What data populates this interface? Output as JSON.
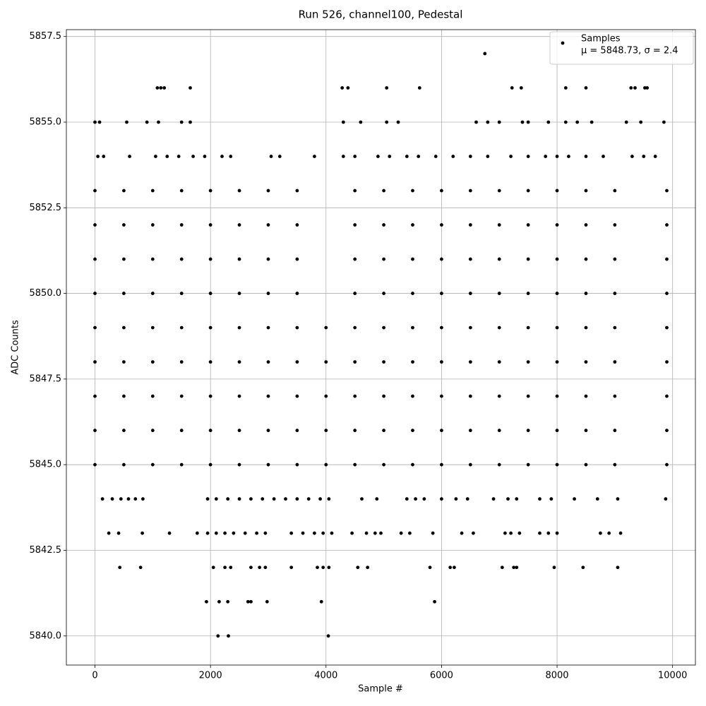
{
  "chart_data": {
    "type": "scatter",
    "title": "Run 526, channel100, Pedestal",
    "x_label": "Sample #",
    "y_label": "ADC Counts",
    "annotation": "μ = 5848.73, σ = 2.4",
    "legend": "upper right",
    "grid": true,
    "xlim": [
      -495,
      10395
    ],
    "ylim": [
      5839.15,
      5857.7
    ],
    "xticks": [
      0,
      2000,
      4000,
      6000,
      8000,
      10000
    ],
    "yticks": [
      {
        "value": 5840,
        "label": "5840.0"
      },
      {
        "value": 5842.5,
        "label": "5842.5"
      },
      {
        "value": 5845,
        "label": "5845.0"
      },
      {
        "value": 5847.5,
        "label": "5847.5"
      },
      {
        "value": 5850,
        "label": "5850.0"
      },
      {
        "value": 5852.5,
        "label": "5852.5"
      },
      {
        "value": 5855,
        "label": "5855.0"
      },
      {
        "value": 5857.5,
        "label": "5857.5"
      }
    ],
    "x": [
      0,
      500,
      1000,
      1500,
      2000,
      2500,
      3000,
      3500,
      4000,
      4500,
      5000,
      5500,
      6000,
      6500,
      7000,
      7500,
      8000,
      8500,
      9000,
      9900,
      0,
      500,
      1000,
      1500,
      2000,
      2500,
      3000,
      3500,
      4000,
      4500,
      5000,
      5500,
      6000,
      6500,
      7000,
      7500,
      8000,
      8500,
      9000,
      9900,
      0,
      500,
      1000,
      1500,
      2000,
      2500,
      3000,
      3500,
      4000,
      4500,
      5000,
      5500,
      6000,
      6500,
      7000,
      7500,
      8000,
      8500,
      9000,
      9900,
      0,
      500,
      1000,
      1500,
      2000,
      2500,
      3000,
      3500,
      4000,
      4500,
      5000,
      5500,
      6000,
      6500,
      7000,
      7500,
      8000,
      8500,
      9000,
      9900,
      0,
      500,
      1000,
      1500,
      2000,
      2500,
      3000,
      3500,
      4000,
      4500,
      5000,
      5500,
      6000,
      6500,
      7000,
      7500,
      8000,
      8500,
      9000,
      9900,
      0,
      500,
      1000,
      1500,
      2000,
      2500,
      3000,
      3500,
      4500,
      5000,
      5500,
      6000,
      6500,
      7000,
      7500,
      8000,
      8500,
      9000,
      9900,
      0,
      500,
      1000,
      1500,
      2000,
      2500,
      3000,
      3500,
      4500,
      5000,
      5500,
      6000,
      6500,
      7000,
      7500,
      8000,
      8500,
      9000,
      9900,
      0,
      500,
      1000,
      1500,
      2000,
      2500,
      3000,
      3500,
      4500,
      5000,
      5500,
      6000,
      6500,
      7000,
      7500,
      8000,
      8500,
      9000,
      9900,
      0,
      500,
      1000,
      1500,
      2000,
      2500,
      3000,
      3500,
      4500,
      5000,
      5500,
      6000,
      6500,
      7000,
      7500,
      8000,
      8500,
      9000,
      9900,
      50,
      150,
      600,
      1050,
      1250,
      1450,
      1700,
      1900,
      2200,
      2350,
      3050,
      3200,
      3800,
      4300,
      4500,
      4900,
      5100,
      5400,
      5600,
      5900,
      6200,
      6500,
      6800,
      7200,
      7500,
      7800,
      8000,
      8200,
      8500,
      8800,
      9300,
      9500,
      9700,
      0,
      80,
      550,
      900,
      1100,
      1500,
      1650,
      4300,
      4600,
      5050,
      5250,
      6600,
      6800,
      7000,
      7400,
      7500,
      7850,
      8150,
      8350,
      8600,
      9200,
      9450,
      9850,
      1080,
      1140,
      1200,
      1650,
      4280,
      4380,
      5050,
      5620,
      7220,
      7380,
      8150,
      8500,
      9280,
      9350,
      9520,
      9560,
      6750,
      130,
      300,
      450,
      580,
      700,
      830,
      1950,
      2100,
      2300,
      2500,
      2700,
      2900,
      3100,
      3300,
      3500,
      3700,
      3900,
      4050,
      4620,
      4880,
      5400,
      5550,
      5700,
      6000,
      6250,
      6450,
      6900,
      7150,
      7300,
      7700,
      7900,
      8300,
      8700,
      9050,
      9880,
      240,
      410,
      820,
      1290,
      1770,
      1950,
      2100,
      2250,
      2400,
      2600,
      2800,
      2950,
      3400,
      3600,
      3800,
      3950,
      4100,
      4450,
      4700,
      4850,
      4950,
      5300,
      5450,
      5850,
      6350,
      6550,
      7100,
      7200,
      7350,
      7700,
      7850,
      8000,
      8750,
      8900,
      9100,
      430,
      790,
      2050,
      2250,
      2350,
      2700,
      2850,
      2950,
      3400,
      3850,
      3950,
      4050,
      4550,
      4720,
      5800,
      6150,
      6220,
      7050,
      7250,
      7300,
      7950,
      8450,
      9050,
      1930,
      2150,
      2300,
      2650,
      2700,
      2980,
      3920,
      5880,
      2130,
      2310,
      4040
    ],
    "series": [
      {
        "name": "Samples",
        "color": "#000000",
        "values": [
          5845,
          5845,
          5845,
          5845,
          5845,
          5845,
          5845,
          5845,
          5845,
          5845,
          5845,
          5845,
          5845,
          5845,
          5845,
          5845,
          5845,
          5845,
          5845,
          5845,
          5846,
          5846,
          5846,
          5846,
          5846,
          5846,
          5846,
          5846,
          5846,
          5846,
          5846,
          5846,
          5846,
          5846,
          5846,
          5846,
          5846,
          5846,
          5846,
          5846,
          5847,
          5847,
          5847,
          5847,
          5847,
          5847,
          5847,
          5847,
          5847,
          5847,
          5847,
          5847,
          5847,
          5847,
          5847,
          5847,
          5847,
          5847,
          5847,
          5847,
          5848,
          5848,
          5848,
          5848,
          5848,
          5848,
          5848,
          5848,
          5848,
          5848,
          5848,
          5848,
          5848,
          5848,
          5848,
          5848,
          5848,
          5848,
          5848,
          5848,
          5849,
          5849,
          5849,
          5849,
          5849,
          5849,
          5849,
          5849,
          5849,
          5849,
          5849,
          5849,
          5849,
          5849,
          5849,
          5849,
          5849,
          5849,
          5849,
          5849,
          5850,
          5850,
          5850,
          5850,
          5850,
          5850,
          5850,
          5850,
          5850,
          5850,
          5850,
          5850,
          5850,
          5850,
          5850,
          5850,
          5850,
          5850,
          5850,
          5851,
          5851,
          5851,
          5851,
          5851,
          5851,
          5851,
          5851,
          5851,
          5851,
          5851,
          5851,
          5851,
          5851,
          5851,
          5851,
          5851,
          5851,
          5851,
          5852,
          5852,
          5852,
          5852,
          5852,
          5852,
          5852,
          5852,
          5852,
          5852,
          5852,
          5852,
          5852,
          5852,
          5852,
          5852,
          5852,
          5852,
          5852,
          5853,
          5853,
          5853,
          5853,
          5853,
          5853,
          5853,
          5853,
          5853,
          5853,
          5853,
          5853,
          5853,
          5853,
          5853,
          5853,
          5853,
          5853,
          5853,
          5854,
          5854,
          5854,
          5854,
          5854,
          5854,
          5854,
          5854,
          5854,
          5854,
          5854,
          5854,
          5854,
          5854,
          5854,
          5854,
          5854,
          5854,
          5854,
          5854,
          5854,
          5854,
          5854,
          5854,
          5854,
          5854,
          5854,
          5854,
          5854,
          5854,
          5854,
          5854,
          5854,
          5855,
          5855,
          5855,
          5855,
          5855,
          5855,
          5855,
          5855,
          5855,
          5855,
          5855,
          5855,
          5855,
          5855,
          5855,
          5855,
          5855,
          5855,
          5855,
          5855,
          5855,
          5855,
          5855,
          5856,
          5856,
          5856,
          5856,
          5856,
          5856,
          5856,
          5856,
          5856,
          5856,
          5856,
          5856,
          5856,
          5856,
          5856,
          5856,
          5857,
          5844,
          5844,
          5844,
          5844,
          5844,
          5844,
          5844,
          5844,
          5844,
          5844,
          5844,
          5844,
          5844,
          5844,
          5844,
          5844,
          5844,
          5844,
          5844,
          5844,
          5844,
          5844,
          5844,
          5844,
          5844,
          5844,
          5844,
          5844,
          5844,
          5844,
          5844,
          5844,
          5844,
          5844,
          5844,
          5843,
          5843,
          5843,
          5843,
          5843,
          5843,
          5843,
          5843,
          5843,
          5843,
          5843,
          5843,
          5843,
          5843,
          5843,
          5843,
          5843,
          5843,
          5843,
          5843,
          5843,
          5843,
          5843,
          5843,
          5843,
          5843,
          5843,
          5843,
          5843,
          5843,
          5843,
          5843,
          5843,
          5843,
          5843,
          5842,
          5842,
          5842,
          5842,
          5842,
          5842,
          5842,
          5842,
          5842,
          5842,
          5842,
          5842,
          5842,
          5842,
          5842,
          5842,
          5842,
          5842,
          5842,
          5842,
          5842,
          5842,
          5842,
          5841,
          5841,
          5841,
          5841,
          5841,
          5841,
          5841,
          5841,
          5840,
          5840,
          5840
        ]
      }
    ]
  }
}
